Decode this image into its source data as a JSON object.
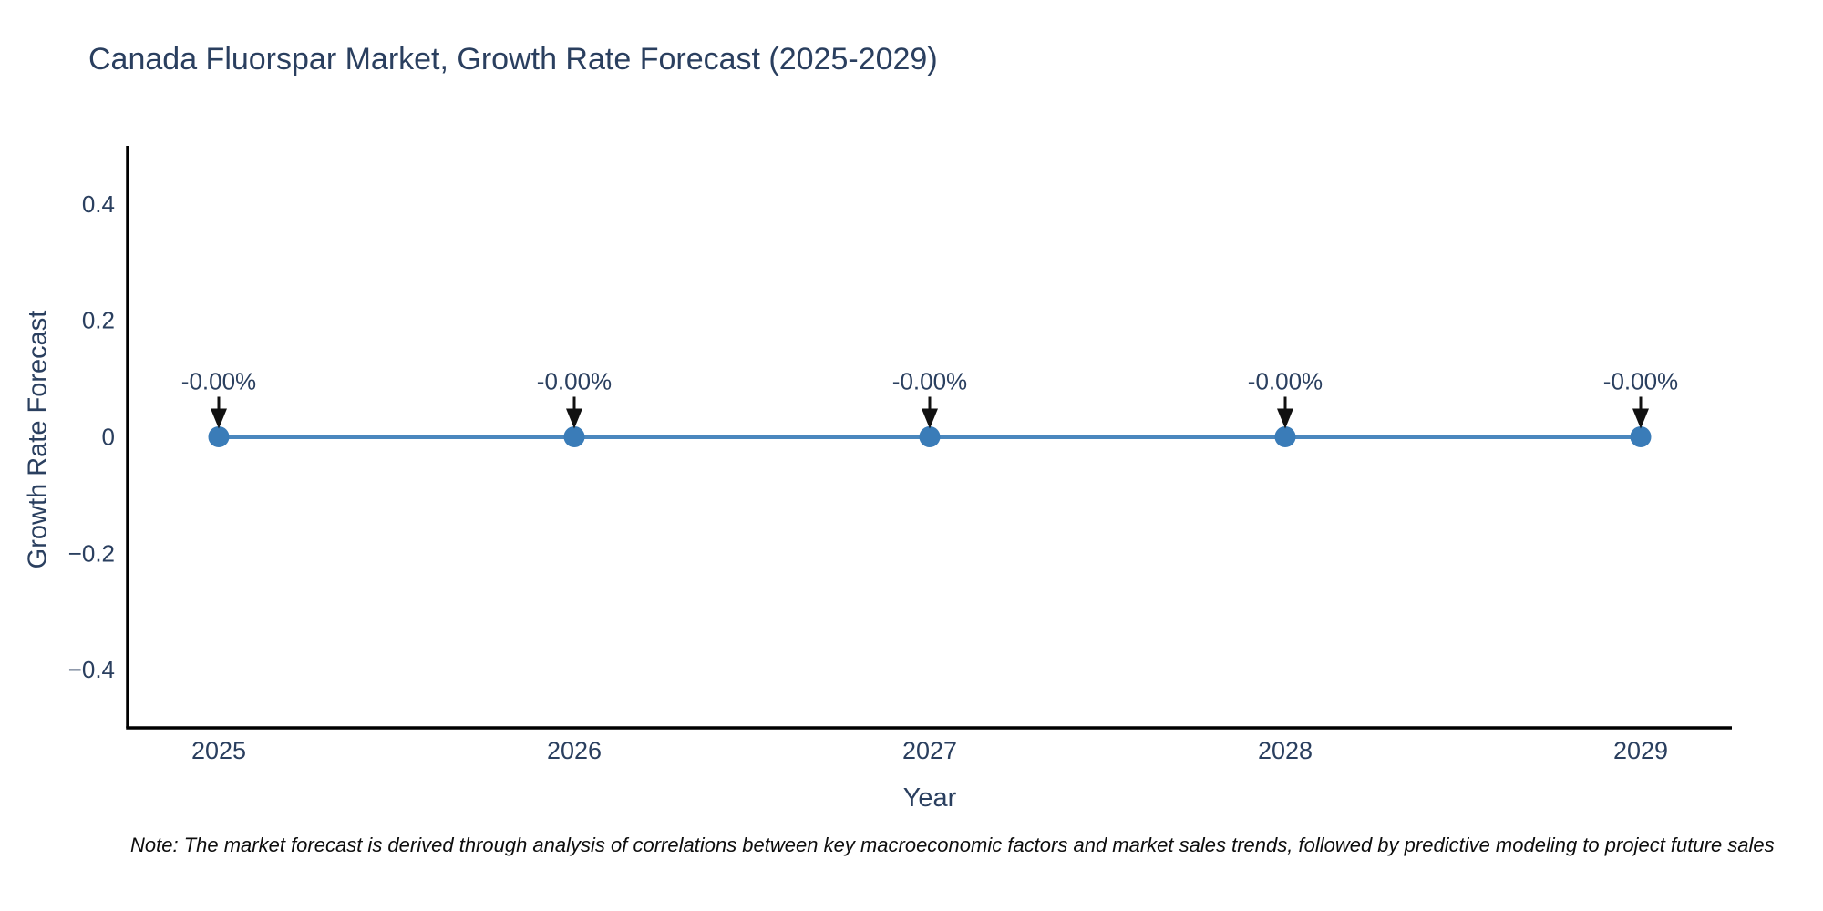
{
  "note": {
    "text": "Note: The market forecast is derived through analysis of correlations between key macroeconomic factors and market sales trends, followed by predictive modeling to project future sales"
  },
  "chart_data": {
    "type": "line",
    "title": "Canada Fluorspar Market, Growth Rate Forecast (2025-2029)",
    "xlabel": "Year",
    "ylabel": "Growth Rate Forecast",
    "categories": [
      "2025",
      "2026",
      "2027",
      "2028",
      "2029"
    ],
    "values": [
      0,
      0,
      0,
      0,
      0
    ],
    "point_labels": [
      "-0.00%",
      "-0.00%",
      "-0.00%",
      "-0.00%",
      "-0.00%"
    ],
    "ylim": [
      -0.5,
      0.5
    ],
    "y_ticks": [
      0.4,
      0.2,
      0,
      -0.2,
      -0.4
    ],
    "y_tick_labels": [
      "0.4",
      "0.2",
      "0",
      "−0.2",
      "−0.4"
    ],
    "grid": false,
    "legend_position": "none",
    "colors": {
      "line": "#4a87be",
      "marker": "#3a7cb8",
      "axis": "#000000",
      "text": "#2a3f5f",
      "annotation_text": "#2a3f5f",
      "arrow": "#111111",
      "background": "#ffffff"
    }
  }
}
